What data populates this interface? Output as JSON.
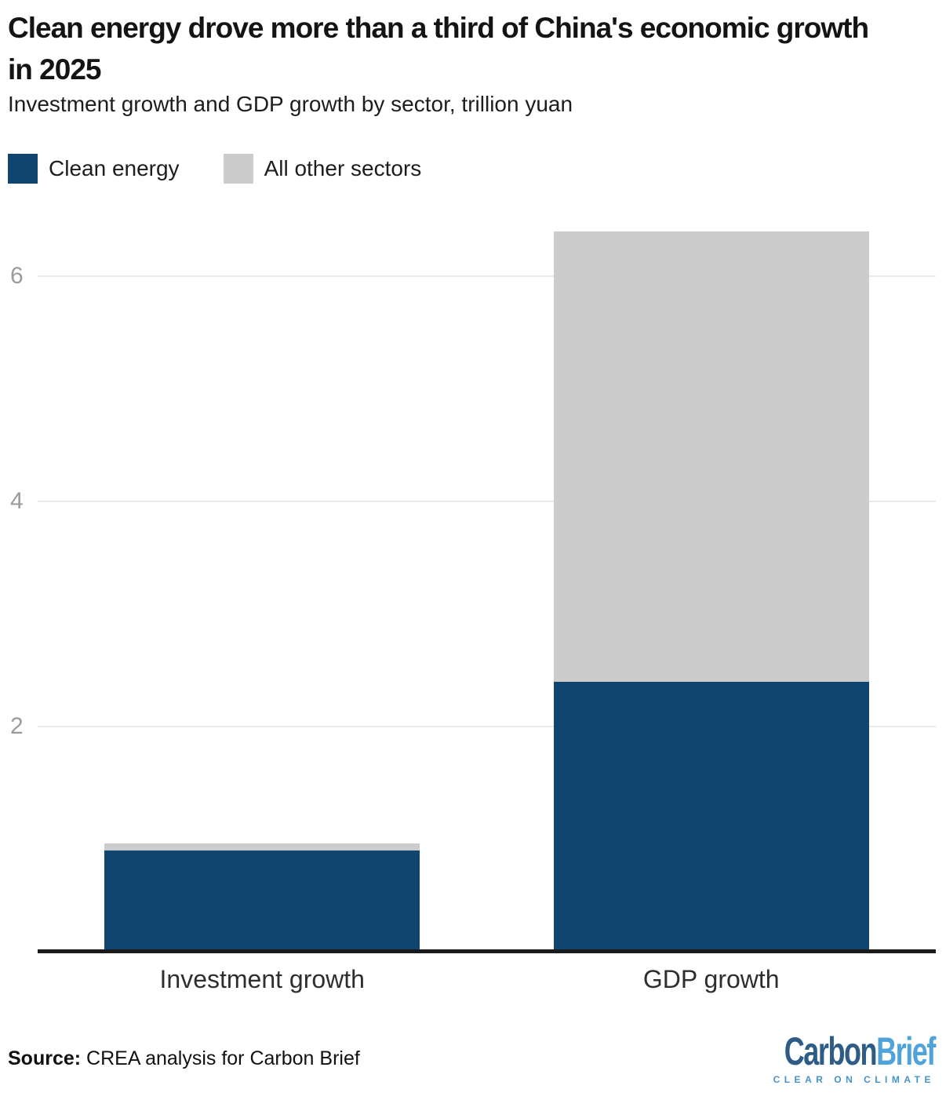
{
  "chart_data": {
    "type": "bar",
    "stacked": true,
    "title": "Clean energy drove more than a third of China's economic growth in 2025",
    "subtitle": "Investment growth and GDP growth by sector, trillion yuan",
    "unit": "trillion yuan",
    "categories": [
      "Investment growth",
      "GDP growth"
    ],
    "series": [
      {
        "name": "Clean energy",
        "color": "#10456F",
        "values": [
          0.9,
          2.4
        ]
      },
      {
        "name": "All other sectors",
        "color": "#CCCCCC",
        "values": [
          0.06,
          4.0
        ]
      }
    ],
    "totals": [
      0.96,
      6.4
    ],
    "yticks": [
      2,
      4,
      6
    ],
    "ylim": [
      0,
      6.6
    ],
    "xlabel": "",
    "ylabel": "",
    "grid": "horizontal",
    "legend_position": "top-left"
  },
  "footer": {
    "source_label": "Source:",
    "source_text": " CREA analysis for Carbon Brief",
    "logo": {
      "part1": "Carbon",
      "part2": "Brief",
      "tagline": "CLEAR ON CLIMATE"
    }
  }
}
